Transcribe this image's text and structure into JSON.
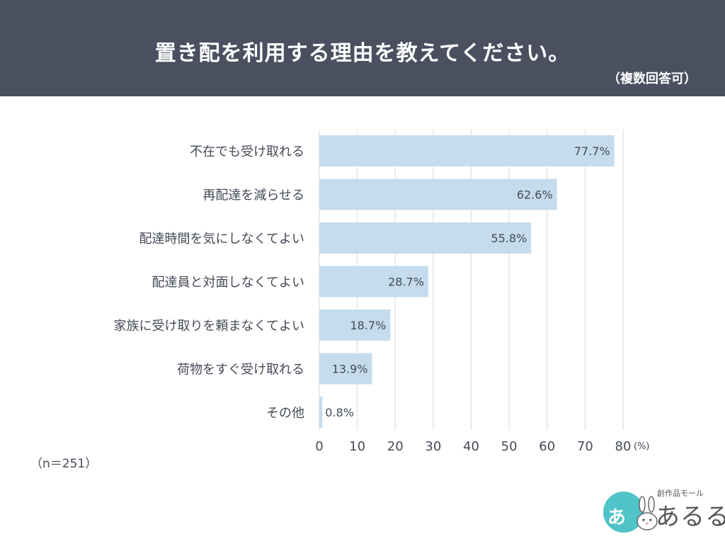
{
  "header": {
    "title": "置き配を利用する理由を教えてください。",
    "subtitle": "（複数回答可）"
  },
  "note": "（n＝251）",
  "colors": {
    "header_bg": "#4a5060",
    "bar": "#c5dced",
    "grid": "#d9d9d9",
    "text": "#444a57",
    "logo_accent": "#4fc3c8"
  },
  "logo": {
    "circle_text": "あ",
    "small_text": "創作品モール",
    "big_text": "あるる"
  },
  "chart_data": {
    "type": "bar",
    "orientation": "horizontal",
    "categories": [
      "不在でも受け取れる",
      "再配達を減らせる",
      "配達時間を気にしなくてよい",
      "配達員と対面しなくてよい",
      "家族に受け取りを頼まなくてよい",
      "荷物をすぐ受け取れる",
      "その他"
    ],
    "values": [
      77.7,
      62.6,
      55.8,
      28.7,
      18.7,
      13.9,
      0.8
    ],
    "value_labels": [
      "77.7%",
      "62.6%",
      "55.8%",
      "28.7%",
      "18.7%",
      "13.9%",
      "0.8%"
    ],
    "xlim": [
      0,
      80
    ],
    "xticks": [
      0,
      10,
      20,
      30,
      40,
      50,
      60,
      70,
      80
    ],
    "x_unit": "(%)",
    "grid": true
  }
}
